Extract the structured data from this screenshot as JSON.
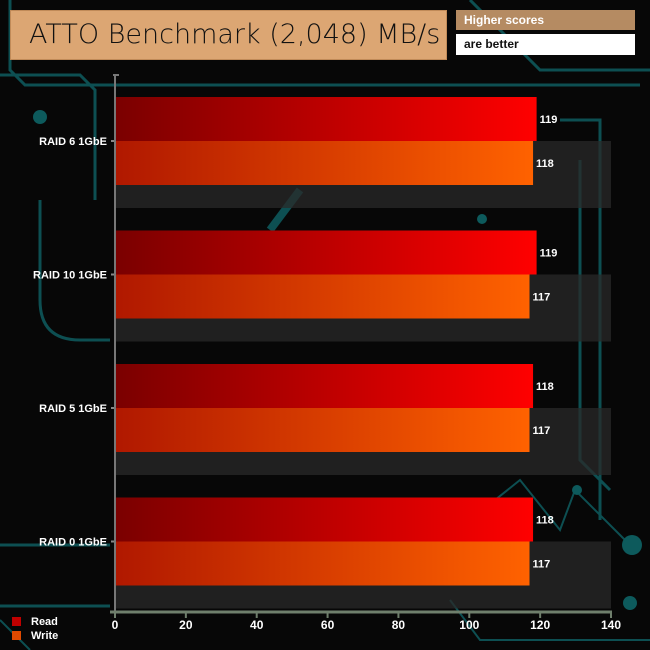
{
  "header": {
    "title": "ATTO Benchmark (2,048) MB/s",
    "note_line1": "Higher scores",
    "note_line2": "are better"
  },
  "colors": {
    "read_start": "#7a0000",
    "read_end": "#ff0000",
    "write_start": "#b01800",
    "write_end": "#ff6200",
    "axis": "#6f7f6c",
    "deco": "#0d4f52"
  },
  "chart_data": {
    "type": "bar",
    "orientation": "horizontal",
    "title": "ATTO Benchmark (2,048) MB/s",
    "categories": [
      "RAID 6 1GbE",
      "RAID 10 1GbE",
      "RAID 5 1GbE",
      "RAID 0 1GbE"
    ],
    "series": [
      {
        "name": "Read",
        "values": [
          119,
          119,
          118,
          118
        ]
      },
      {
        "name": "Write",
        "values": [
          118,
          117,
          117,
          117
        ]
      }
    ],
    "xlim": [
      0,
      140
    ],
    "xticks": [
      0,
      20,
      40,
      60,
      80,
      100,
      120,
      140
    ],
    "xlabel": "",
    "ylabel": "",
    "legend": "bottom-left"
  }
}
